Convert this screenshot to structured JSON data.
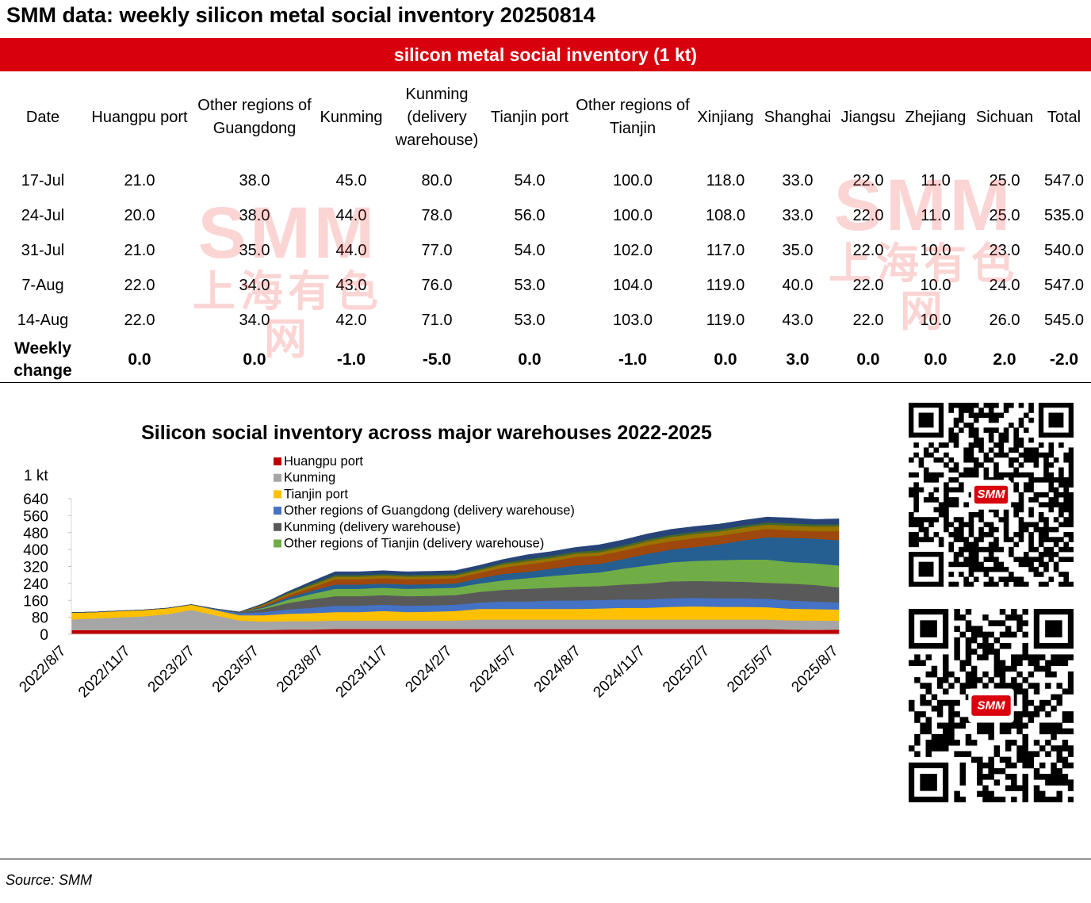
{
  "title": "SMM data:  weekly silicon metal social inventory 20250814",
  "table": {
    "banner": "silicon metal social inventory (1 kt)",
    "columns": [
      "Date",
      "Huangpu port",
      "Other regions of Guangdong",
      "Kunming",
      "Kunming (delivery warehouse)",
      "Tianjin port",
      "Other regions of Tianjin",
      "Xinjiang",
      "Shanghai",
      "Jiangsu",
      "Zhejiang",
      "Sichuan",
      "Total"
    ],
    "rows": [
      [
        "17-Jul",
        "21.0",
        "38.0",
        "45.0",
        "80.0",
        "54.0",
        "100.0",
        "118.0",
        "33.0",
        "22.0",
        "11.0",
        "25.0",
        "547.0"
      ],
      [
        "24-Jul",
        "20.0",
        "38.0",
        "44.0",
        "78.0",
        "56.0",
        "100.0",
        "108.0",
        "33.0",
        "22.0",
        "11.0",
        "25.0",
        "535.0"
      ],
      [
        "31-Jul",
        "21.0",
        "35.0",
        "44.0",
        "77.0",
        "54.0",
        "102.0",
        "117.0",
        "35.0",
        "22.0",
        "10.0",
        "23.0",
        "540.0"
      ],
      [
        "7-Aug",
        "22.0",
        "34.0",
        "43.0",
        "76.0",
        "53.0",
        "104.0",
        "119.0",
        "40.0",
        "22.0",
        "10.0",
        "24.0",
        "547.0"
      ],
      [
        "14-Aug",
        "22.0",
        "34.0",
        "42.0",
        "71.0",
        "53.0",
        "103.0",
        "119.0",
        "43.0",
        "22.0",
        "10.0",
        "26.0",
        "545.0"
      ]
    ],
    "weekly_change": [
      "Weekly change",
      "0.0",
      "0.0",
      "-1.0",
      "-5.0",
      "0.0",
      "-1.0",
      "0.0",
      "3.0",
      "0.0",
      "0.0",
      "2.0",
      "-2.0"
    ]
  },
  "watermark": {
    "logo": "SMM",
    "chinese": "上海有色网"
  },
  "chart_data": {
    "type": "area",
    "stacked": true,
    "title": "Silicon social inventory across major warehouses 2022-2025",
    "ylabel": "1 kt",
    "ylim": [
      0,
      640
    ],
    "yticks": [
      0,
      80,
      160,
      240,
      320,
      400,
      480,
      560,
      640
    ],
    "xtick_labels": [
      "2022/8/7",
      "2022/11/7",
      "2023/2/7",
      "2023/5/7",
      "2023/8/7",
      "2023/11/7",
      "2024/2/7",
      "2024/5/7",
      "2024/8/7",
      "2024/11/7",
      "2025/2/7",
      "2025/5/7",
      "2025/8/7"
    ],
    "x": [
      "2022/8",
      "2022/10",
      "2022/12",
      "2023/2",
      "2023/4",
      "2023/5",
      "2023/6",
      "2023/7",
      "2023/8",
      "2023/9",
      "2023/10",
      "2023/11",
      "2023/12",
      "2024/1",
      "2024/2",
      "2024/3",
      "2024/4",
      "2024/5",
      "2024/6",
      "2024/7",
      "2024/8",
      "2024/9",
      "2024/10",
      "2024/11",
      "2024/12",
      "2025/1",
      "2025/2",
      "2025/3",
      "2025/4",
      "2025/5",
      "2025/6",
      "2025/7",
      "2025/8"
    ],
    "legend_position": "top-center",
    "series": [
      {
        "name": "Huangpu port",
        "color": "#c00000",
        "legend": true,
        "values": [
          20,
          20,
          20,
          20,
          20,
          20,
          20,
          20,
          20,
          22,
          22,
          25,
          25,
          25,
          25,
          25,
          25,
          25,
          25,
          25,
          25,
          25,
          25,
          25,
          25,
          25,
          25,
          25,
          25,
          25,
          22,
          21,
          22
        ]
      },
      {
        "name": "Kunming",
        "color": "#a6a6a6",
        "legend": true,
        "values": [
          50,
          55,
          60,
          65,
          75,
          95,
          70,
          45,
          40,
          40,
          40,
          40,
          40,
          40,
          40,
          40,
          40,
          45,
          45,
          45,
          45,
          45,
          45,
          45,
          45,
          45,
          45,
          45,
          45,
          45,
          44,
          44,
          42
        ]
      },
      {
        "name": "Tianjin port",
        "color": "#ffc000",
        "legend": true,
        "values": [
          32,
          30,
          30,
          30,
          28,
          25,
          25,
          25,
          30,
          35,
          38,
          40,
          40,
          45,
          40,
          42,
          45,
          50,
          50,
          50,
          50,
          50,
          52,
          55,
          55,
          60,
          62,
          60,
          60,
          58,
          55,
          54,
          53
        ]
      },
      {
        "name": "Other regions of Guangdong (delivery warehouse)",
        "color": "#4472c4",
        "legend": true,
        "values": [
          0,
          0,
          0,
          0,
          0,
          0,
          5,
          10,
          15,
          20,
          25,
          30,
          30,
          30,
          30,
          30,
          30,
          30,
          35,
          35,
          40,
          40,
          40,
          40,
          40,
          40,
          40,
          40,
          40,
          40,
          38,
          36,
          34
        ]
      },
      {
        "name": "Kunming (delivery warehouse)",
        "color": "#595959",
        "legend": true,
        "values": [
          0,
          0,
          0,
          0,
          0,
          0,
          0,
          5,
          15,
          30,
          40,
          45,
          45,
          45,
          45,
          45,
          45,
          50,
          55,
          60,
          60,
          65,
          65,
          70,
          75,
          80,
          80,
          80,
          78,
          75,
          80,
          78,
          71
        ]
      },
      {
        "name": "Other regions of Tianjin (delivery warehouse)",
        "color": "#70ad47",
        "legend": true,
        "values": [
          0,
          0,
          0,
          0,
          0,
          0,
          0,
          0,
          5,
          15,
          25,
          35,
          35,
          35,
          35,
          35,
          35,
          40,
          45,
          50,
          55,
          60,
          65,
          75,
          85,
          90,
          95,
          100,
          105,
          110,
          102,
          102,
          103
        ]
      },
      {
        "name": "Xinjiang",
        "color": "#255e91",
        "legend": false,
        "values": [
          0,
          0,
          0,
          0,
          0,
          0,
          0,
          0,
          5,
          10,
          15,
          20,
          20,
          20,
          20,
          20,
          20,
          25,
          30,
          30,
          35,
          40,
          40,
          45,
          55,
          60,
          65,
          75,
          90,
          105,
          115,
          117,
          119
        ]
      },
      {
        "name": "Shanghai",
        "color": "#9e480e",
        "legend": false,
        "values": [
          0,
          0,
          0,
          0,
          0,
          0,
          0,
          0,
          5,
          10,
          15,
          25,
          25,
          25,
          25,
          25,
          25,
          25,
          30,
          35,
          35,
          40,
          40,
          40,
          40,
          40,
          42,
          40,
          40,
          40,
          35,
          35,
          43
        ]
      },
      {
        "name": "Jiangsu",
        "color": "#997300",
        "legend": false,
        "values": [
          0,
          0,
          0,
          0,
          0,
          0,
          0,
          0,
          5,
          8,
          10,
          12,
          12,
          12,
          12,
          12,
          12,
          12,
          15,
          15,
          15,
          15,
          15,
          15,
          18,
          20,
          20,
          20,
          20,
          20,
          22,
          22,
          22
        ]
      },
      {
        "name": "Zhejiang",
        "color": "#43682b",
        "legend": false,
        "values": [
          0,
          0,
          0,
          0,
          0,
          0,
          0,
          0,
          2,
          5,
          8,
          8,
          8,
          8,
          8,
          8,
          8,
          8,
          8,
          10,
          10,
          10,
          10,
          10,
          10,
          10,
          10,
          10,
          10,
          10,
          11,
          10,
          10
        ]
      },
      {
        "name": "Sichuan",
        "color": "#264478",
        "legend": false,
        "values": [
          0,
          0,
          0,
          0,
          0,
          0,
          0,
          0,
          3,
          5,
          10,
          15,
          15,
          15,
          15,
          15,
          15,
          15,
          15,
          20,
          20,
          20,
          25,
          25,
          25,
          25,
          25,
          25,
          25,
          25,
          25,
          23,
          26
        ]
      }
    ]
  }
}
